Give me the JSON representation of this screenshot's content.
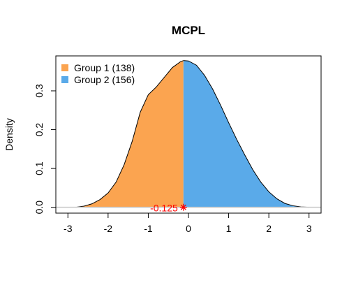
{
  "chart_data": {
    "type": "area",
    "title": "MCPL",
    "xlabel": "",
    "ylabel": "Density",
    "xlim": [
      -3.3,
      3.3
    ],
    "ylim": [
      -0.015,
      0.39
    ],
    "x_ticks": [
      -3,
      -2,
      -1,
      0,
      1,
      2,
      3
    ],
    "x_tick_labels": [
      "-3",
      "-2",
      "-1",
      "0",
      "1",
      "2",
      "3"
    ],
    "y_ticks": [
      0.0,
      0.1,
      0.2,
      0.3
    ],
    "y_tick_labels": [
      "0.0",
      "0.1",
      "0.2",
      "0.3"
    ],
    "split_x": -0.125,
    "grid": false,
    "legend_position": "top-left",
    "series": [
      {
        "name": "Group 1 (138)",
        "color": "#FBA450",
        "x": [
          -2.8,
          -2.6,
          -2.4,
          -2.2,
          -2.0,
          -1.8,
          -1.6,
          -1.4,
          -1.2,
          -1.0,
          -0.8,
          -0.6,
          -0.4,
          -0.2,
          -0.125
        ],
        "y": [
          0.0,
          0.003,
          0.009,
          0.02,
          0.037,
          0.065,
          0.11,
          0.17,
          0.245,
          0.29,
          0.31,
          0.335,
          0.36,
          0.375,
          0.378
        ]
      },
      {
        "name": "Group 2 (156)",
        "color": "#5AAAE9",
        "x": [
          -0.125,
          0.0,
          0.2,
          0.4,
          0.6,
          0.8,
          1.0,
          1.2,
          1.4,
          1.6,
          1.8,
          2.0,
          2.2,
          2.4,
          2.6,
          2.8,
          3.0
        ],
        "y": [
          0.378,
          0.377,
          0.366,
          0.34,
          0.305,
          0.263,
          0.218,
          0.175,
          0.135,
          0.097,
          0.065,
          0.04,
          0.022,
          0.01,
          0.004,
          0.001,
          0.0
        ]
      }
    ],
    "annotations": [
      {
        "text": "-0.125",
        "x": -0.125,
        "y": 0.0,
        "color": "#FF0000",
        "marker": "*"
      }
    ]
  }
}
